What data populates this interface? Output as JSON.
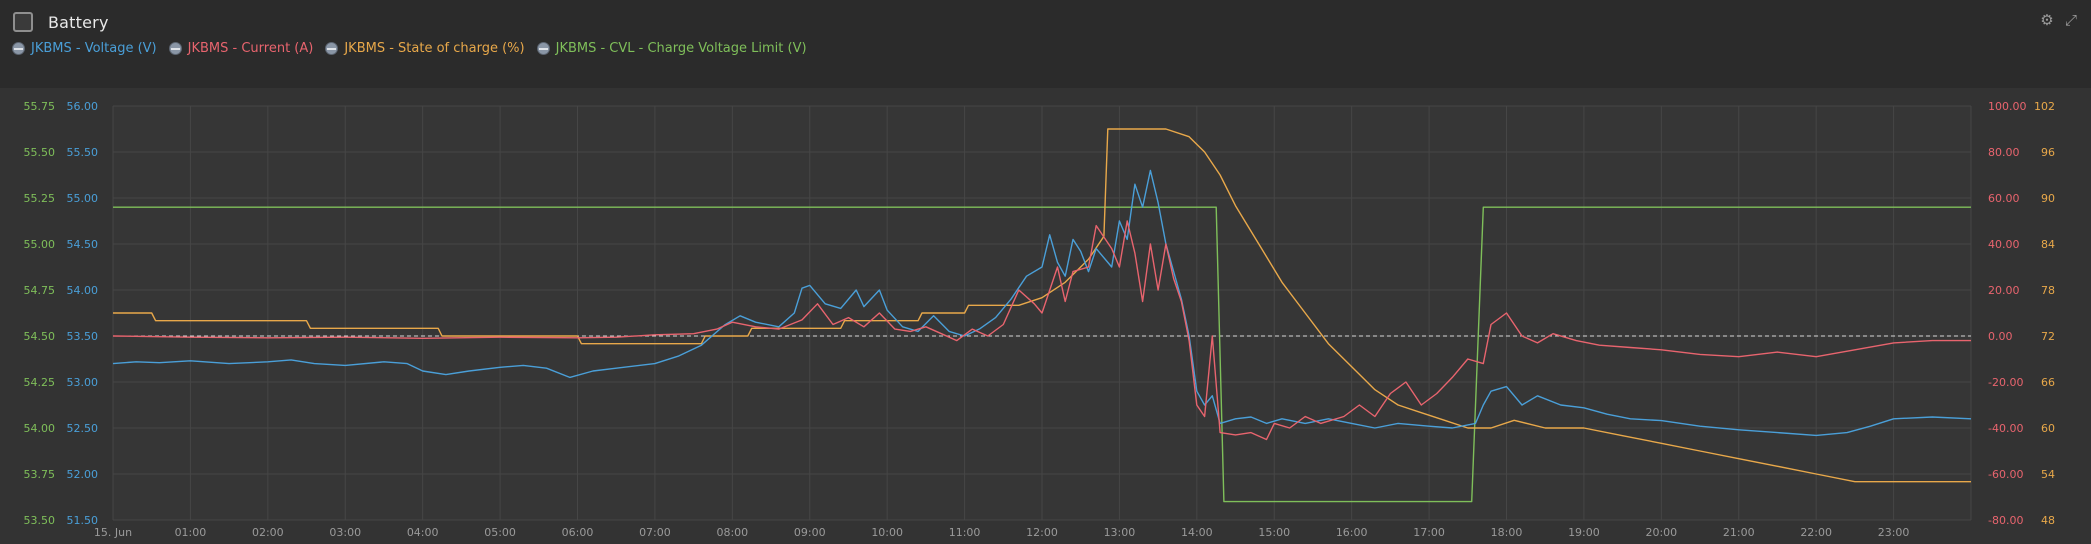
{
  "header": {
    "title": "Battery",
    "icon": "chart-icon",
    "tools": [
      {
        "name": "settings-icon"
      },
      {
        "name": "expand-icon"
      }
    ]
  },
  "legend": [
    {
      "label": "JKBMS - Voltage (V)",
      "color": "#4a9fd8"
    },
    {
      "label": "JKBMS - Current (A)",
      "color": "#e8646e"
    },
    {
      "label": "JKBMS - State of charge (%)",
      "color": "#e8a84a"
    },
    {
      "label": "JKBMS - CVL - Charge Voltage Limit (V)",
      "color": "#7fbf5a"
    }
  ],
  "chart_data": {
    "type": "line",
    "xlabel": "",
    "x_ticks": [
      "15. Jun",
      "01:00",
      "02:00",
      "03:00",
      "04:00",
      "05:00",
      "06:00",
      "07:00",
      "08:00",
      "09:00",
      "10:00",
      "11:00",
      "12:00",
      "13:00",
      "14:00",
      "15:00",
      "16:00",
      "17:00",
      "18:00",
      "19:00",
      "20:00",
      "21:00",
      "22:00",
      "23:00"
    ],
    "x_range_hours": [
      0,
      24
    ],
    "axes": {
      "cvl": {
        "side": "left-outer",
        "ylim": [
          53.5,
          55.75
        ],
        "ticks": [
          "55.75",
          "55.50",
          "55.25",
          "55.00",
          "54.75",
          "54.50",
          "54.25",
          "54.00",
          "53.75",
          "53.50"
        ],
        "color": "#7fbf5a"
      },
      "voltage": {
        "side": "left-inner",
        "ylim": [
          51.5,
          56.0
        ],
        "ticks": [
          "56.00",
          "55.50",
          "55.00",
          "54.50",
          "54.00",
          "53.50",
          "53.00",
          "52.50",
          "52.00",
          "51.50"
        ],
        "color": "#4a9fd8"
      },
      "current": {
        "side": "right-inner",
        "ylim": [
          -80,
          100
        ],
        "ticks": [
          "100.00",
          "80.00",
          "60.00",
          "40.00",
          "20.00",
          "0.00",
          "-20.00",
          "-40.00",
          "-60.00",
          "-80.00"
        ],
        "color": "#e8646e"
      },
      "soc": {
        "side": "right-outer",
        "ylim": [
          48,
          102
        ],
        "ticks": [
          "102",
          "96",
          "90",
          "84",
          "78",
          "72",
          "66",
          "60",
          "54",
          "48"
        ],
        "color": "#e8a84a"
      }
    },
    "grid": true,
    "zero_line": {
      "axis": "current",
      "value": 0,
      "style": "dashed"
    },
    "series": [
      {
        "name": "JKBMS - Voltage (V)",
        "axis": "voltage",
        "color": "#4a9fd8",
        "points": [
          [
            0,
            53.2
          ],
          [
            0.3,
            53.22
          ],
          [
            0.6,
            53.21
          ],
          [
            1.0,
            53.23
          ],
          [
            1.5,
            53.2
          ],
          [
            2.0,
            53.22
          ],
          [
            2.3,
            53.24
          ],
          [
            2.6,
            53.2
          ],
          [
            3.0,
            53.18
          ],
          [
            3.5,
            53.22
          ],
          [
            3.8,
            53.2
          ],
          [
            4.0,
            53.12
          ],
          [
            4.3,
            53.08
          ],
          [
            4.6,
            53.12
          ],
          [
            5.0,
            53.16
          ],
          [
            5.3,
            53.18
          ],
          [
            5.6,
            53.15
          ],
          [
            5.9,
            53.05
          ],
          [
            6.2,
            53.12
          ],
          [
            6.5,
            53.15
          ],
          [
            7.0,
            53.2
          ],
          [
            7.3,
            53.28
          ],
          [
            7.6,
            53.4
          ],
          [
            7.9,
            53.62
          ],
          [
            8.1,
            53.72
          ],
          [
            8.3,
            53.65
          ],
          [
            8.6,
            53.6
          ],
          [
            8.8,
            53.75
          ],
          [
            8.9,
            54.02
          ],
          [
            9.0,
            54.05
          ],
          [
            9.2,
            53.85
          ],
          [
            9.4,
            53.8
          ],
          [
            9.6,
            54.0
          ],
          [
            9.7,
            53.82
          ],
          [
            9.9,
            54.0
          ],
          [
            10.0,
            53.78
          ],
          [
            10.2,
            53.6
          ],
          [
            10.4,
            53.55
          ],
          [
            10.6,
            53.72
          ],
          [
            10.8,
            53.55
          ],
          [
            11.0,
            53.5
          ],
          [
            11.2,
            53.58
          ],
          [
            11.4,
            53.7
          ],
          [
            11.6,
            53.9
          ],
          [
            11.8,
            54.15
          ],
          [
            12.0,
            54.25
          ],
          [
            12.1,
            54.6
          ],
          [
            12.2,
            54.3
          ],
          [
            12.3,
            54.15
          ],
          [
            12.4,
            54.55
          ],
          [
            12.5,
            54.42
          ],
          [
            12.6,
            54.2
          ],
          [
            12.7,
            54.45
          ],
          [
            12.9,
            54.25
          ],
          [
            13.0,
            54.75
          ],
          [
            13.1,
            54.55
          ],
          [
            13.2,
            55.15
          ],
          [
            13.3,
            54.9
          ],
          [
            13.4,
            55.3
          ],
          [
            13.5,
            54.95
          ],
          [
            13.6,
            54.5
          ],
          [
            13.8,
            53.9
          ],
          [
            13.9,
            53.5
          ],
          [
            14.0,
            52.9
          ],
          [
            14.1,
            52.75
          ],
          [
            14.2,
            52.85
          ],
          [
            14.3,
            52.55
          ],
          [
            14.5,
            52.6
          ],
          [
            14.7,
            52.62
          ],
          [
            14.9,
            52.55
          ],
          [
            15.1,
            52.6
          ],
          [
            15.4,
            52.55
          ],
          [
            15.7,
            52.6
          ],
          [
            16.0,
            52.55
          ],
          [
            16.3,
            52.5
          ],
          [
            16.6,
            52.55
          ],
          [
            17.0,
            52.52
          ],
          [
            17.3,
            52.5
          ],
          [
            17.6,
            52.55
          ],
          [
            17.7,
            52.75
          ],
          [
            17.8,
            52.9
          ],
          [
            18.0,
            52.95
          ],
          [
            18.2,
            52.75
          ],
          [
            18.4,
            52.85
          ],
          [
            18.7,
            52.75
          ],
          [
            19.0,
            52.72
          ],
          [
            19.3,
            52.65
          ],
          [
            19.6,
            52.6
          ],
          [
            20.0,
            52.58
          ],
          [
            20.5,
            52.52
          ],
          [
            21.0,
            52.48
          ],
          [
            21.5,
            52.45
          ],
          [
            22.0,
            52.42
          ],
          [
            22.4,
            52.45
          ],
          [
            22.7,
            52.52
          ],
          [
            23.0,
            52.6
          ],
          [
            23.5,
            52.62
          ],
          [
            24.0,
            52.6
          ]
        ]
      },
      {
        "name": "JKBMS - Current (A)",
        "axis": "current",
        "color": "#e8646e",
        "points": [
          [
            0,
            0.0
          ],
          [
            1,
            -0.5
          ],
          [
            2,
            -0.8
          ],
          [
            3,
            -0.5
          ],
          [
            4,
            -1.0
          ],
          [
            5,
            -0.5
          ],
          [
            6,
            -0.8
          ],
          [
            6.5,
            -0.5
          ],
          [
            7.0,
            0.5
          ],
          [
            7.5,
            1.0
          ],
          [
            7.8,
            3.0
          ],
          [
            8.0,
            6.0
          ],
          [
            8.3,
            4.0
          ],
          [
            8.6,
            3.0
          ],
          [
            8.9,
            7.0
          ],
          [
            9.1,
            14.0
          ],
          [
            9.3,
            5.0
          ],
          [
            9.5,
            8.0
          ],
          [
            9.7,
            4.0
          ],
          [
            9.9,
            10.0
          ],
          [
            10.1,
            3.0
          ],
          [
            10.3,
            2.0
          ],
          [
            10.5,
            4.0
          ],
          [
            10.7,
            1.0
          ],
          [
            10.9,
            -2.0
          ],
          [
            11.1,
            3.0
          ],
          [
            11.3,
            0.0
          ],
          [
            11.5,
            5.0
          ],
          [
            11.7,
            20.0
          ],
          [
            11.9,
            14.0
          ],
          [
            12.0,
            10.0
          ],
          [
            12.2,
            30.0
          ],
          [
            12.3,
            15.0
          ],
          [
            12.4,
            28.0
          ],
          [
            12.6,
            30.0
          ],
          [
            12.7,
            48.0
          ],
          [
            12.9,
            38.0
          ],
          [
            13.0,
            30.0
          ],
          [
            13.1,
            50.0
          ],
          [
            13.2,
            36.0
          ],
          [
            13.3,
            15.0
          ],
          [
            13.4,
            40.0
          ],
          [
            13.5,
            20.0
          ],
          [
            13.6,
            40.0
          ],
          [
            13.7,
            25.0
          ],
          [
            13.8,
            15.0
          ],
          [
            13.9,
            -2.0
          ],
          [
            14.0,
            -30.0
          ],
          [
            14.1,
            -35.0
          ],
          [
            14.2,
            0.0
          ],
          [
            14.3,
            -42.0
          ],
          [
            14.5,
            -43.0
          ],
          [
            14.7,
            -42.0
          ],
          [
            14.9,
            -45.0
          ],
          [
            15.0,
            -38.0
          ],
          [
            15.2,
            -40.0
          ],
          [
            15.4,
            -35.0
          ],
          [
            15.6,
            -38.0
          ],
          [
            15.9,
            -35.0
          ],
          [
            16.1,
            -30.0
          ],
          [
            16.3,
            -35.0
          ],
          [
            16.5,
            -25.0
          ],
          [
            16.7,
            -20.0
          ],
          [
            16.9,
            -30.0
          ],
          [
            17.1,
            -25.0
          ],
          [
            17.3,
            -18.0
          ],
          [
            17.5,
            -10.0
          ],
          [
            17.7,
            -12.0
          ],
          [
            17.8,
            5.0
          ],
          [
            18.0,
            10.0
          ],
          [
            18.2,
            0.0
          ],
          [
            18.4,
            -3.0
          ],
          [
            18.6,
            1.0
          ],
          [
            18.9,
            -2.0
          ],
          [
            19.2,
            -4.0
          ],
          [
            19.6,
            -5.0
          ],
          [
            20.0,
            -6.0
          ],
          [
            20.5,
            -8.0
          ],
          [
            21.0,
            -9.0
          ],
          [
            21.5,
            -7.0
          ],
          [
            22.0,
            -9.0
          ],
          [
            22.5,
            -6.0
          ],
          [
            23.0,
            -3.0
          ],
          [
            23.5,
            -2.0
          ],
          [
            24.0,
            -2.0
          ]
        ]
      },
      {
        "name": "JKBMS - State of charge (%)",
        "axis": "soc",
        "color": "#e8a84a",
        "points": [
          [
            0,
            75
          ],
          [
            0.5,
            75
          ],
          [
            0.55,
            74
          ],
          [
            2.5,
            74
          ],
          [
            2.55,
            73
          ],
          [
            4.2,
            73
          ],
          [
            4.25,
            72
          ],
          [
            6.0,
            72
          ],
          [
            6.05,
            71
          ],
          [
            7.6,
            71
          ],
          [
            7.65,
            72
          ],
          [
            8.2,
            72
          ],
          [
            8.25,
            73
          ],
          [
            9.4,
            73
          ],
          [
            9.45,
            74
          ],
          [
            10.4,
            74
          ],
          [
            10.45,
            75
          ],
          [
            11.0,
            75
          ],
          [
            11.05,
            76
          ],
          [
            11.7,
            76
          ],
          [
            12.0,
            77
          ],
          [
            12.3,
            79
          ],
          [
            12.6,
            82
          ],
          [
            12.8,
            85
          ],
          [
            12.85,
            99
          ],
          [
            13.6,
            99
          ],
          [
            13.9,
            98
          ],
          [
            14.1,
            96
          ],
          [
            14.3,
            93
          ],
          [
            14.5,
            89
          ],
          [
            14.8,
            84
          ],
          [
            15.1,
            79
          ],
          [
            15.4,
            75
          ],
          [
            15.7,
            71
          ],
          [
            16.0,
            68
          ],
          [
            16.3,
            65
          ],
          [
            16.6,
            63
          ],
          [
            16.9,
            62
          ],
          [
            17.2,
            61
          ],
          [
            17.5,
            60
          ],
          [
            17.8,
            60
          ],
          [
            18.1,
            61
          ],
          [
            18.5,
            60
          ],
          [
            19.0,
            60
          ],
          [
            19.5,
            59
          ],
          [
            20.0,
            58
          ],
          [
            20.5,
            57
          ],
          [
            21.0,
            56
          ],
          [
            21.5,
            55
          ],
          [
            22.0,
            54
          ],
          [
            22.5,
            53
          ],
          [
            23.0,
            53
          ],
          [
            24.0,
            53
          ]
        ]
      },
      {
        "name": "JKBMS - CVL - Charge Voltage Limit (V)",
        "axis": "cvl",
        "color": "#7fbf5a",
        "points": [
          [
            0,
            55.2
          ],
          [
            14.25,
            55.2
          ],
          [
            14.35,
            53.6
          ],
          [
            17.55,
            53.6
          ],
          [
            17.7,
            55.2
          ],
          [
            24.0,
            55.2
          ]
        ]
      }
    ]
  }
}
